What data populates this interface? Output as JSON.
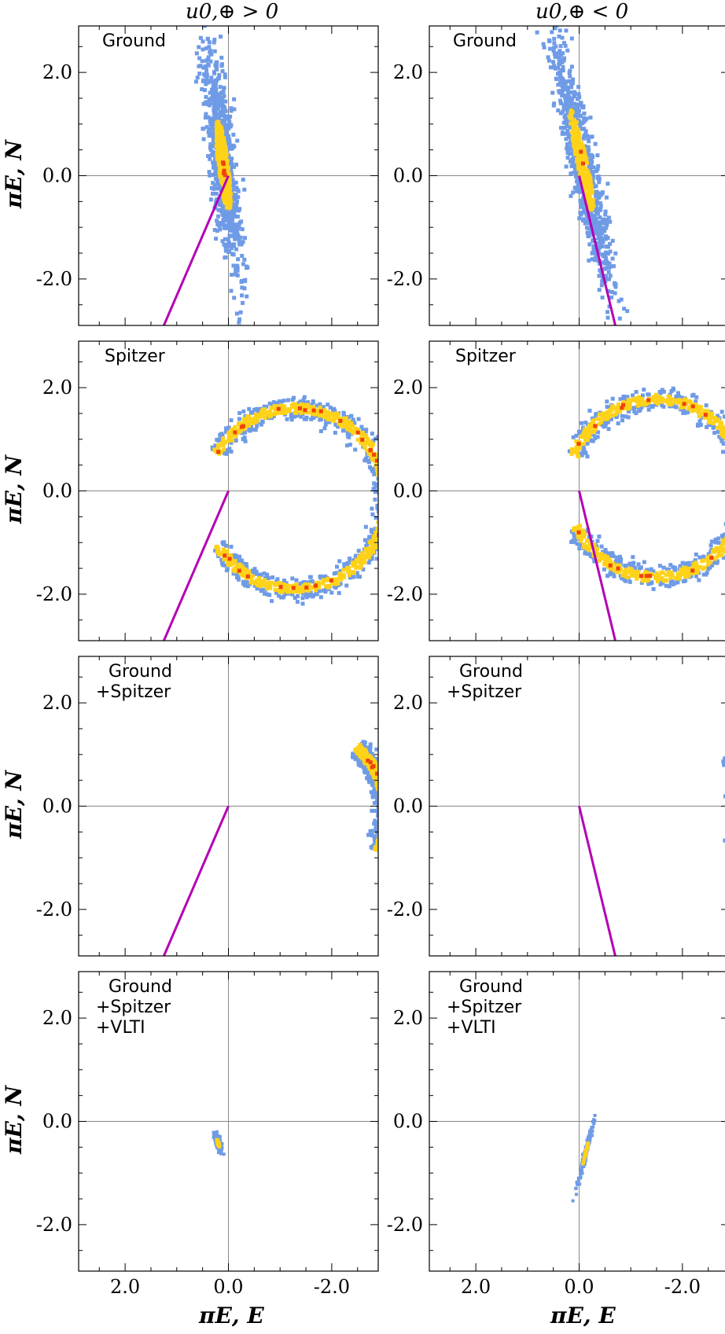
{
  "column_titles": [
    "u0,⊕ > 0",
    "u0,⊕ < 0"
  ],
  "axis_labels": {
    "y": "πE, N",
    "x": "πE, E"
  },
  "colors": {
    "outer": "#6f9be6",
    "middle": "#ffd21a",
    "inner": "#f0420a",
    "line": "#b400b4",
    "axis_line": "#888888"
  },
  "chart_data": [
    {
      "type": "scatter",
      "panel": "Ground, u0>0",
      "label": [
        "Ground"
      ],
      "xlim": [
        2.9,
        -2.9
      ],
      "ylim": [
        -2.9,
        2.9
      ],
      "xticks": [
        2.0,
        0.0,
        -2.0
      ],
      "yticks": [
        2.0,
        0.0,
        -2.0
      ],
      "tick_labels_x": [
        "2.0",
        "0.0",
        "-2.0"
      ],
      "tick_labels_y": [
        "2.0",
        "0.0",
        "-2.0"
      ],
      "region": {
        "shape": "ellipse",
        "center": [
          0.1,
          0.2
        ],
        "semi_major": 2.15,
        "semi_minor": 0.24,
        "angle_deg": 83
      },
      "line": [
        [
          0.0,
          0.0
        ],
        [
          1.25,
          -2.9
        ]
      ]
    },
    {
      "type": "scatter",
      "panel": "Ground, u0<0",
      "label": [
        "Ground"
      ],
      "xlim": [
        2.9,
        -2.9
      ],
      "ylim": [
        -2.9,
        2.9
      ],
      "xticks": [
        2.0,
        0.0,
        -2.0
      ],
      "yticks": [
        2.0,
        0.0,
        -2.0
      ],
      "tick_labels_x": [
        "2.0",
        "0.0",
        "-2.0"
      ],
      "tick_labels_y": [
        "2.0",
        "0.0",
        "-2.0"
      ],
      "region": {
        "shape": "ellipse",
        "center": [
          -0.05,
          0.3
        ],
        "semi_major": 2.4,
        "semi_minor": 0.24,
        "angle_deg": 78
      },
      "line": [
        [
          0.0,
          0.0
        ],
        [
          -0.7,
          -2.9
        ]
      ]
    },
    {
      "type": "scatter",
      "panel": "Spitzer, u0>0",
      "label": [
        "Spitzer"
      ],
      "xlim": [
        2.9,
        -2.9
      ],
      "ylim": [
        -2.9,
        2.9
      ],
      "xticks": [
        2.0,
        0.0,
        -2.0
      ],
      "yticks": [
        2.0,
        0.0,
        -2.0
      ],
      "tick_labels_x": [
        "2.0",
        "0.0",
        "-2.0"
      ],
      "tick_labels_y": [
        "2.0",
        "0.0",
        "-2.0"
      ],
      "region": {
        "shape": "arc",
        "center": [
          -1.3,
          -0.15
        ],
        "radius": 1.75,
        "start_deg": 30,
        "end_deg": 330,
        "width": 0.22
      },
      "line": [
        [
          0.0,
          0.0
        ],
        [
          1.25,
          -2.9
        ]
      ]
    },
    {
      "type": "scatter",
      "panel": "Spitzer, u0<0",
      "label": [
        "Spitzer"
      ],
      "xlim": [
        2.9,
        -2.9
      ],
      "ylim": [
        -2.9,
        2.9
      ],
      "xticks": [
        2.0,
        0.0,
        -2.0
      ],
      "yticks": [
        2.0,
        0.0,
        -2.0
      ],
      "tick_labels_x": [
        "2.0",
        "0.0",
        "-2.0"
      ],
      "tick_labels_y": [
        "2.0",
        "0.0",
        "-2.0"
      ],
      "region": {
        "shape": "arc",
        "center": [
          -1.5,
          0.05
        ],
        "radius": 1.72,
        "start_deg": 22,
        "end_deg": 335,
        "width": 0.22
      },
      "line": [
        [
          0.0,
          0.0
        ],
        [
          -0.7,
          -2.9
        ]
      ]
    },
    {
      "type": "scatter",
      "panel": "Ground+Spitzer, u0>0",
      "label": [
        "Ground",
        "+Spitzer"
      ],
      "xlim": [
        2.9,
        -2.9
      ],
      "ylim": [
        -2.9,
        2.9
      ],
      "xticks": [
        2.0,
        0.0,
        -2.0
      ],
      "yticks": [
        2.0,
        0.0,
        -2.0
      ],
      "tick_labels_x": [
        "2.0",
        "0.0",
        "-2.0"
      ],
      "tick_labels_y": [
        "2.0",
        "0.0",
        "-2.0"
      ],
      "region": {
        "shape": "arc",
        "center": [
          -1.3,
          -0.15
        ],
        "radius": 1.75,
        "start_deg": 133,
        "end_deg": 204,
        "width": 0.2
      },
      "line": [
        [
          0.0,
          0.0
        ],
        [
          1.25,
          -2.9
        ]
      ]
    },
    {
      "type": "scatter",
      "panel": "Ground+Spitzer, u0<0",
      "label": [
        "Ground",
        "+Spitzer"
      ],
      "xlim": [
        2.9,
        -2.9
      ],
      "ylim": [
        -2.9,
        2.9
      ],
      "xticks": [
        2.0,
        0.0,
        -2.0
      ],
      "yticks": [
        2.0,
        0.0,
        -2.0
      ],
      "tick_labels_x": [
        "2.0",
        "0.0",
        "-2.0"
      ],
      "tick_labels_y": [
        "2.0",
        "0.0",
        "-2.0"
      ],
      "region": {
        "shape": "arc",
        "center": [
          -1.5,
          0.05
        ],
        "radius": 1.72,
        "start_deg": 146,
        "end_deg": 209,
        "width": 0.2
      },
      "line": [
        [
          0.0,
          0.0
        ],
        [
          -0.7,
          -2.9
        ]
      ]
    },
    {
      "type": "scatter",
      "panel": "Ground+Spitzer+VLTI, u0>0",
      "label": [
        "Ground",
        "+Spitzer",
        "+VLTI"
      ],
      "xlim": [
        2.9,
        -2.9
      ],
      "ylim": [
        -2.9,
        2.9
      ],
      "xticks": [
        2.0,
        0.0,
        -2.0
      ],
      "yticks": [
        2.0,
        0.0,
        -2.0
      ],
      "tick_labels_x": [
        "2.0",
        "0.0",
        "-2.0"
      ],
      "tick_labels_y": [
        "2.0",
        "0.0",
        "-2.0"
      ],
      "region": {
        "shape": "ellipse",
        "center": [
          0.2,
          -0.42
        ],
        "semi_major": 0.2,
        "semi_minor": 0.05,
        "angle_deg": 70
      },
      "line": null
    },
    {
      "type": "scatter",
      "panel": "Ground+Spitzer+VLTI, u0<0",
      "label": [
        "Ground",
        "+Spitzer",
        "+VLTI"
      ],
      "xlim": [
        2.9,
        -2.9
      ],
      "ylim": [
        -2.9,
        2.9
      ],
      "xticks": [
        2.0,
        0.0,
        -2.0
      ],
      "yticks": [
        2.0,
        0.0,
        -2.0
      ],
      "tick_labels_x": [
        "2.0",
        "0.0",
        "-2.0"
      ],
      "tick_labels_y": [
        "2.0",
        "0.0",
        "-2.0"
      ],
      "region": {
        "shape": "ellipse",
        "center": [
          -0.13,
          -0.6
        ],
        "semi_major": 0.62,
        "semi_minor": 0.035,
        "angle_deg": -76
      },
      "line": null
    }
  ]
}
